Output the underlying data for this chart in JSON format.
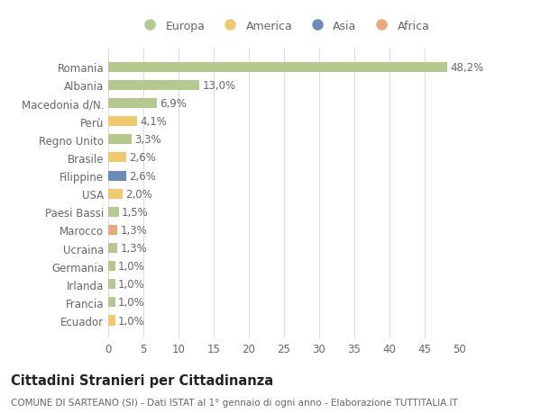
{
  "categories": [
    "Romania",
    "Albania",
    "Macedonia d/N.",
    "Perù",
    "Regno Unito",
    "Brasile",
    "Filippine",
    "USA",
    "Paesi Bassi",
    "Marocco",
    "Ucraina",
    "Germania",
    "Irlanda",
    "Francia",
    "Ecuador"
  ],
  "values": [
    48.2,
    13.0,
    6.9,
    4.1,
    3.3,
    2.6,
    2.6,
    2.0,
    1.5,
    1.3,
    1.3,
    1.0,
    1.0,
    1.0,
    1.0
  ],
  "labels": [
    "48,2%",
    "13,0%",
    "6,9%",
    "4,1%",
    "3,3%",
    "2,6%",
    "2,6%",
    "2,0%",
    "1,5%",
    "1,3%",
    "1,3%",
    "1,0%",
    "1,0%",
    "1,0%",
    "1,0%"
  ],
  "continents": [
    "Europa",
    "Europa",
    "Europa",
    "America",
    "Europa",
    "America",
    "Asia",
    "America",
    "Europa",
    "Africa",
    "Europa",
    "Europa",
    "Europa",
    "Europa",
    "America"
  ],
  "colors": {
    "Europa": "#b5c98e",
    "America": "#f0c96e",
    "Asia": "#6b8cba",
    "Africa": "#e8a87c"
  },
  "legend_order": [
    "Europa",
    "America",
    "Asia",
    "Africa"
  ],
  "xlim": [
    0,
    50
  ],
  "xticks": [
    0,
    5,
    10,
    15,
    20,
    25,
    30,
    35,
    40,
    45,
    50
  ],
  "title": "Cittadini Stranieri per Cittadinanza",
  "subtitle": "COMUNE DI SARTEANO (SI) - Dati ISTAT al 1° gennaio di ogni anno - Elaborazione TUTTITALIA.IT",
  "background_color": "#ffffff",
  "grid_color": "#dddddd",
  "bar_height": 0.55,
  "label_fontsize": 8.5,
  "tick_fontsize": 8.5,
  "title_fontsize": 10.5,
  "subtitle_fontsize": 7.5
}
